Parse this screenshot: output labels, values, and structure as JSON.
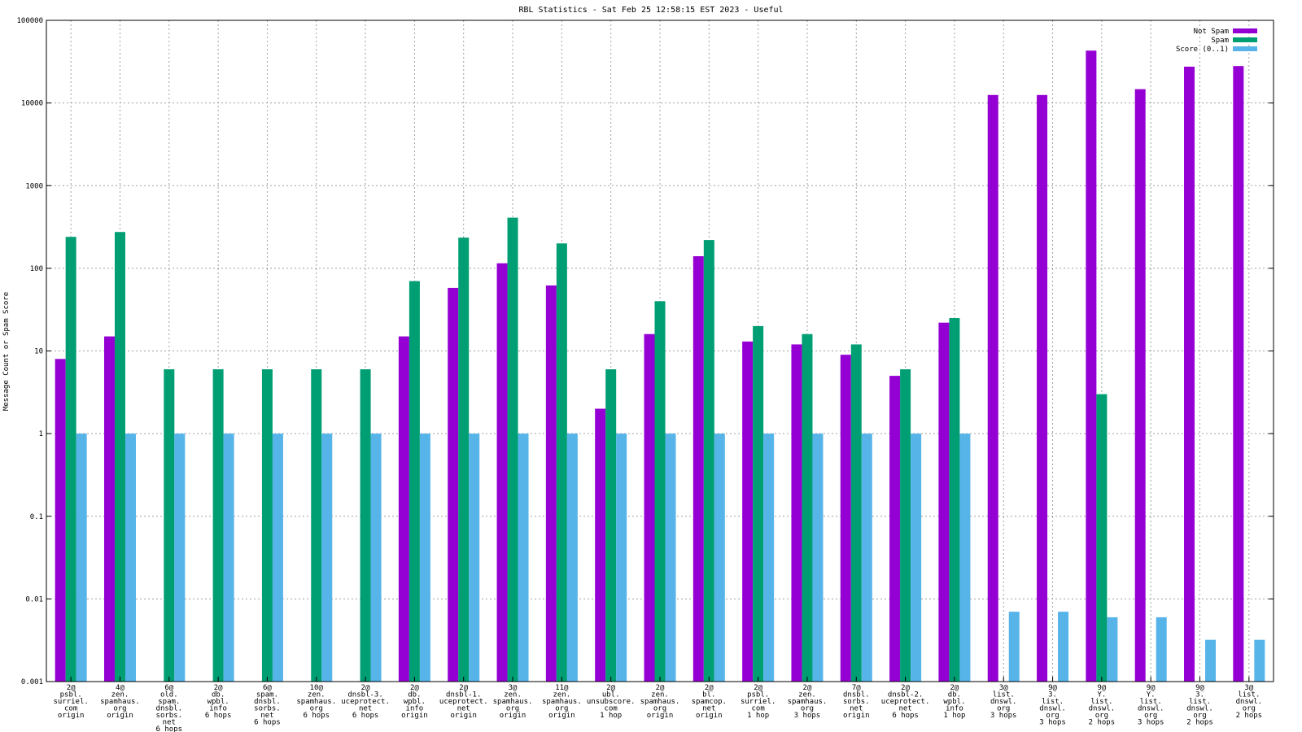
{
  "chart_data": {
    "type": "bar",
    "title": "RBL Statistics - Sat Feb 25 12:58:15 EST 2023 - Useful",
    "ylabel": "Message Count or Spam Score",
    "xlabel": "",
    "yscale": "log",
    "ylim": [
      0.001,
      100000
    ],
    "yticks": [
      "0.001",
      "0.01",
      "0.1",
      "1",
      "10",
      "100",
      "1000",
      "10000",
      "100000"
    ],
    "grid": true,
    "legend_position": "top-right",
    "categories": [
      [
        "2@",
        "psbl.",
        "surriel.",
        "com",
        "origin"
      ],
      [
        "4@",
        "zen.",
        "spamhaus.",
        "org",
        "origin"
      ],
      [
        "6@",
        "old.",
        "spam.",
        "dnsbl.",
        "sorbs.",
        "net",
        "6 hops"
      ],
      [
        "2@",
        "db.",
        "wpbl.",
        "info",
        "6 hops"
      ],
      [
        "6@",
        "spam.",
        "dnsbl.",
        "sorbs.",
        "net",
        "6 hops"
      ],
      [
        "10@",
        "zen.",
        "spamhaus.",
        "org",
        "6 hops"
      ],
      [
        "2@",
        "dnsbl-3.",
        "uceprotect.",
        "net",
        "6 hops"
      ],
      [
        "2@",
        "db.",
        "wpbl.",
        "info",
        "origin"
      ],
      [
        "2@",
        "dnsbl-1.",
        "uceprotect.",
        "net",
        "origin"
      ],
      [
        "3@",
        "zen.",
        "spamhaus.",
        "org",
        "origin"
      ],
      [
        "11@",
        "zen.",
        "spamhaus.",
        "org",
        "origin"
      ],
      [
        "2@",
        "ubl.",
        "unsubscore.",
        "com",
        "1 hop"
      ],
      [
        "2@",
        "zen.",
        "spamhaus.",
        "org",
        "origin"
      ],
      [
        "2@",
        "bl.",
        "spamcop.",
        "net",
        "origin"
      ],
      [
        "2@",
        "psbl.",
        "surriel.",
        "com",
        "1 hop"
      ],
      [
        "2@",
        "zen.",
        "spamhaus.",
        "org",
        "3 hops"
      ],
      [
        "7@",
        "dnsbl.",
        "sorbs.",
        "net",
        "origin"
      ],
      [
        "2@",
        "dnsbl-2.",
        "uceprotect.",
        "net",
        "6 hops"
      ],
      [
        "2@",
        "db.",
        "wpbl.",
        "info",
        "1 hop"
      ],
      [
        "3@",
        "list.",
        "dnswl.",
        "org",
        "3 hops"
      ],
      [
        "9@",
        "3.",
        "list.",
        "dnswl.",
        "org",
        "3 hops"
      ],
      [
        "9@",
        "Y.",
        "list.",
        "dnswl.",
        "org",
        "2 hops"
      ],
      [
        "9@",
        "Y.",
        "list.",
        "dnswl.",
        "org",
        "3 hops"
      ],
      [
        "9@",
        "3.",
        "list.",
        "dnswl.",
        "org",
        "2 hops"
      ],
      [
        "3@",
        "list.",
        "dnswl.",
        "org",
        "2 hops"
      ]
    ],
    "series": [
      {
        "name": "Not Spam",
        "color": "#9400d3",
        "values": [
          8,
          15,
          null,
          null,
          null,
          null,
          null,
          15,
          58,
          115,
          62,
          2,
          16,
          140,
          13,
          12,
          9,
          5,
          22,
          12500,
          12500,
          43000,
          14700,
          27500,
          28000
        ]
      },
      {
        "name": "Spam",
        "color": "#009e73",
        "values": [
          240,
          275,
          6,
          6,
          6,
          6,
          6,
          70,
          235,
          410,
          200,
          6,
          40,
          220,
          20,
          16,
          12,
          6,
          25,
          null,
          null,
          3,
          null,
          null,
          null
        ]
      },
      {
        "name": "Score (0..1)",
        "color": "#56b4e9",
        "values": [
          1,
          1,
          1,
          1,
          1,
          1,
          1,
          1,
          1,
          1,
          1,
          1,
          1,
          1,
          1,
          1,
          1,
          1,
          1,
          0.007,
          0.007,
          0.006,
          0.006,
          0.0032,
          0.0032
        ]
      }
    ]
  }
}
